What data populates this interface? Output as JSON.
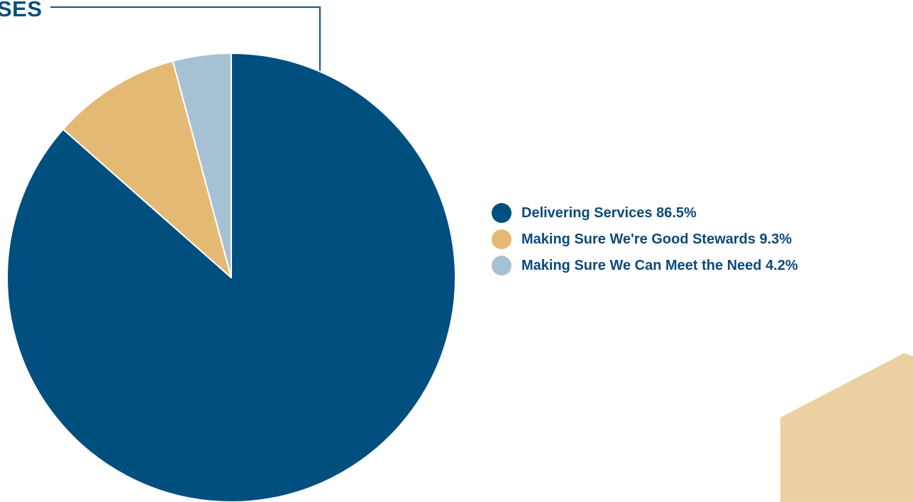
{
  "heading": {
    "text": "SES"
  },
  "colors": {
    "primary": "#004f7f",
    "secondary": "#e4b973",
    "tertiary": "#a7c1d4",
    "accent_line": "#0c5780",
    "decor_shape": "#ebd1a2",
    "legend_text": "#0b4a7a"
  },
  "chart_data": {
    "type": "pie",
    "title": "",
    "categories": [
      "Delivering Services",
      "Making Sure We're Good Stewards",
      "Making Sure We Can Meet the Need"
    ],
    "values": [
      86.5,
      9.3,
      4.2
    ],
    "unit": "%",
    "start_angle": "12 o'clock",
    "direction": "clockwise",
    "legend_position": "right",
    "legend": [
      {
        "label": "Delivering Services 86.5%",
        "color": "#004f7f"
      },
      {
        "label": "Making Sure We're Good Stewards 9.3%",
        "color": "#e4b973"
      },
      {
        "label": "Making Sure We Can Meet the Need 4.2%",
        "color": "#a7c1d4"
      }
    ]
  }
}
